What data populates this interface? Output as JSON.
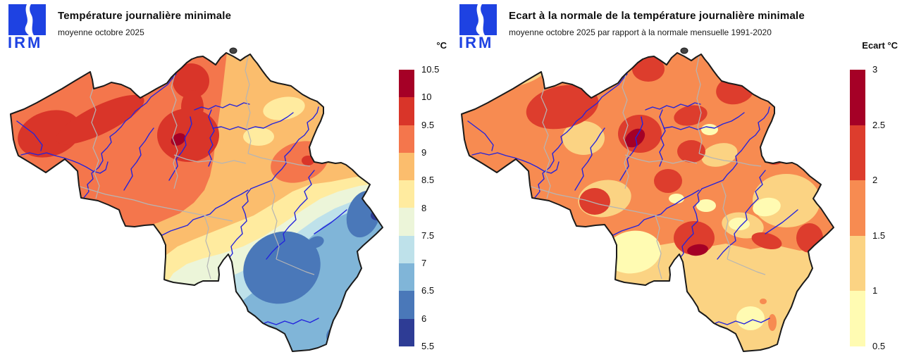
{
  "brand": {
    "logo_text": "IRM",
    "logo_color": "#1e42e2"
  },
  "map": {
    "region": "Belgium",
    "border_color": "#1a1a1a",
    "river_color": "#2323dd",
    "province_border_color": "#b5b5b5",
    "background": "#ffffff"
  },
  "panels": [
    {
      "id": "left",
      "title": "Température journalière minimale",
      "subtitle": "moyenne octobre 2025",
      "legend": {
        "title": "°C",
        "labels": [
          "10.5",
          "10",
          "9.5",
          "9",
          "8.5",
          "8",
          "7.5",
          "7",
          "6.5",
          "6",
          "5.5"
        ],
        "colors": [
          "#a50026",
          "#d93529",
          "#f4764c",
          "#fbbd6d",
          "#ffeb9f",
          "#ecf5d9",
          "#bee1ea",
          "#80b5d8",
          "#4a78b9",
          "#2e3c95"
        ]
      }
    },
    {
      "id": "right",
      "title": "Ecart à la normale de la température journalière minimale",
      "subtitle": "moyenne octobre 2025 par rapport à la normale mensuelle 1991-2020",
      "legend": {
        "title": "Ecart °C",
        "labels": [
          "3",
          "2.5",
          "2",
          "1.5",
          "1",
          "0.5"
        ],
        "colors": [
          "#a50026",
          "#dd3d2d",
          "#f78b51",
          "#fbd383",
          "#fffbb2"
        ]
      }
    }
  ]
}
